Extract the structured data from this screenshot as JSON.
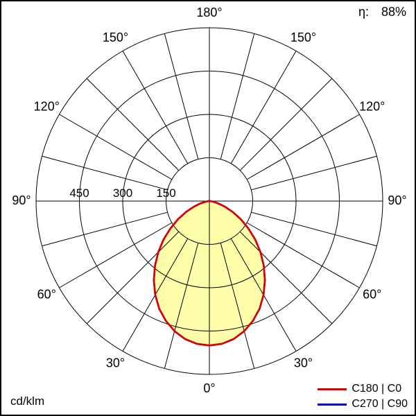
{
  "header": {
    "efficiency_label": "η:",
    "efficiency_value": "88%"
  },
  "footer": {
    "unit_label": "cd/klm"
  },
  "legend": [
    {
      "label": "C180 | C0",
      "color": "#dd0000"
    },
    {
      "label": "C270 | C90",
      "color": "#0000cc"
    }
  ],
  "chart_data": {
    "type": "polar",
    "units": "cd/klm",
    "efficiency_percent": 88,
    "angle_max_deg": 180,
    "angle_label_step_deg": 30,
    "grid_step_deg": 15,
    "radial_ticks": [
      150,
      300,
      450
    ],
    "r_max_value": 600,
    "series": [
      {
        "name": "C270 | C90",
        "color": "#0000cc",
        "angles_deg": [
          -90,
          -85,
          -80,
          -75,
          -70,
          -65,
          -60,
          -55,
          -50,
          -45,
          -40,
          -35,
          -30,
          -25,
          -20,
          -15,
          -10,
          -5,
          0,
          5,
          10,
          15,
          20,
          25,
          30,
          35,
          40,
          45,
          50,
          55,
          60,
          65,
          70,
          75,
          80,
          85,
          90
        ],
        "values": [
          0,
          4,
          15,
          33,
          58,
          89,
          125,
          164,
          207,
          250,
          293,
          335,
          375,
          411,
          441,
          466,
          485,
          496,
          500,
          496,
          485,
          466,
          441,
          411,
          375,
          335,
          293,
          250,
          207,
          164,
          125,
          89,
          58,
          33,
          15,
          4,
          0
        ]
      },
      {
        "name": "C180 | C0",
        "color": "#dd0000",
        "fill": "#ffffaa",
        "angles_deg": [
          -90,
          -85,
          -80,
          -75,
          -70,
          -65,
          -60,
          -55,
          -50,
          -45,
          -40,
          -35,
          -30,
          -25,
          -20,
          -15,
          -10,
          -5,
          0,
          5,
          10,
          15,
          20,
          25,
          30,
          35,
          40,
          45,
          50,
          55,
          60,
          65,
          70,
          75,
          80,
          85,
          90
        ],
        "values": [
          0,
          4,
          15,
          33,
          58,
          89,
          125,
          164,
          207,
          250,
          293,
          335,
          375,
          411,
          441,
          466,
          485,
          496,
          500,
          496,
          485,
          466,
          441,
          411,
          375,
          335,
          293,
          250,
          207,
          164,
          125,
          89,
          58,
          33,
          15,
          4,
          0
        ]
      }
    ]
  }
}
